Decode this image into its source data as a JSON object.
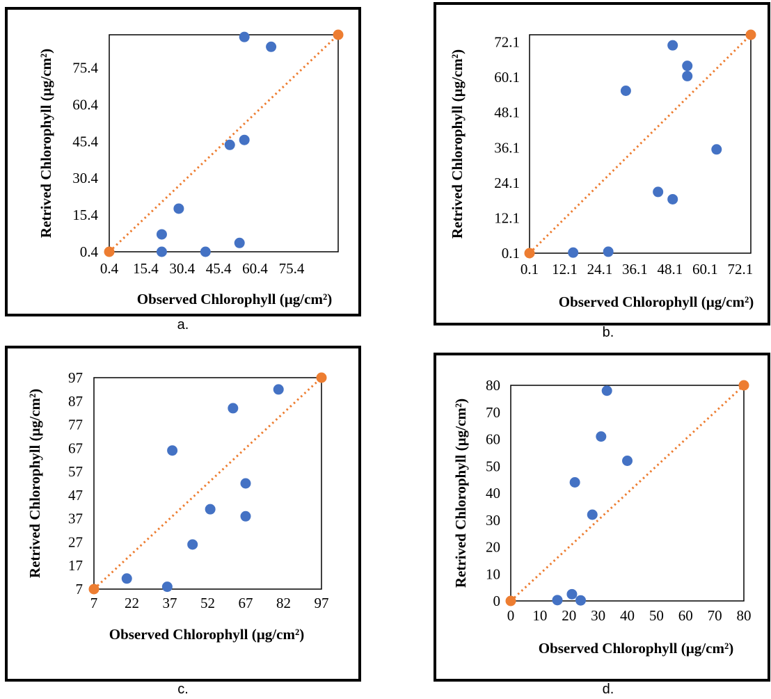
{
  "colors": {
    "observed_points": "#4472C4",
    "line_points": "#ED7D31",
    "line": "#ED7D31",
    "frame": "#000000"
  },
  "chart_data": [
    {
      "type": "scatter",
      "caption": "a.",
      "xlabel": "Observed Chlorophyll (µg/cm²)",
      "ylabel": "Retrived Chlorophyll (µg/cm²)",
      "xlim": [
        0.4,
        94.6
      ],
      "ylim": [
        0.4,
        88.9
      ],
      "xticks": [
        "0.4",
        "15.4",
        "30.4",
        "45.4",
        "60.4",
        "75.4"
      ],
      "yticks": [
        "0.4",
        "15.4",
        "30.4",
        "45.4",
        "60.4",
        "75.4"
      ],
      "grid": false,
      "series": [
        {
          "points": [
            [
              56,
              88
            ],
            [
              67,
              84
            ],
            [
              22,
              0.4
            ],
            [
              22,
              7.5
            ],
            [
              29,
              18
            ],
            [
              40,
              0.4
            ],
            [
              54,
              4
            ],
            [
              50,
              44
            ],
            [
              56,
              46
            ]
          ]
        },
        {
          "points": [
            [
              0.4,
              0.4
            ],
            [
              94.6,
              88.9
            ]
          ]
        }
      ]
    },
    {
      "type": "scatter",
      "caption": "b.",
      "xlabel": "Observed Chlorophyll (µg/cm²)",
      "ylabel": "Retrived Chlorophyll (µg/cm²)",
      "xlim": [
        0.1,
        75.7
      ],
      "ylim": [
        0.1,
        74.6
      ],
      "xticks": [
        "0.1",
        "12.1",
        "24.1",
        "36.1",
        "48.1",
        "60.1",
        "72.1"
      ],
      "yticks": [
        "0.1",
        "12.1",
        "24.1",
        "36.1",
        "48.1",
        "60.1",
        "72.1"
      ],
      "grid": false,
      "series": [
        {
          "points": [
            [
              15,
              0.3
            ],
            [
              27,
              0.6
            ],
            [
              33,
              55.5
            ],
            [
              44,
              21
            ],
            [
              49,
              18.5
            ],
            [
              49,
              71
            ],
            [
              54,
              64
            ],
            [
              54,
              60.5
            ],
            [
              64,
              35.5
            ]
          ]
        },
        {
          "points": [
            [
              0.1,
              0.1
            ],
            [
              75.7,
              74.6
            ]
          ]
        }
      ]
    },
    {
      "type": "scatter",
      "caption": "c.",
      "xlabel": "Observed Chlorophyll (µg/cm²)",
      "ylabel": "Retrived Chlorophyll (µg/cm²)",
      "xlim": [
        7,
        97
      ],
      "ylim": [
        7,
        97
      ],
      "xticks": [
        "7",
        "22",
        "37",
        "52",
        "67",
        "82",
        "97"
      ],
      "yticks": [
        "7",
        "17",
        "27",
        "37",
        "47",
        "57",
        "67",
        "77",
        "87",
        "97"
      ],
      "grid": false,
      "series": [
        {
          "points": [
            [
              20,
              11.5
            ],
            [
              36,
              8
            ],
            [
              38,
              66
            ],
            [
              46,
              26
            ],
            [
              53,
              41
            ],
            [
              62,
              84
            ],
            [
              67,
              52
            ],
            [
              67,
              38
            ],
            [
              80,
              92
            ]
          ]
        },
        {
          "points": [
            [
              7,
              7
            ],
            [
              97,
              97
            ]
          ]
        }
      ]
    },
    {
      "type": "scatter",
      "caption": "d.",
      "xlabel": "Observed Chlorophyll (µg/cm²)",
      "ylabel": "Retrived Chlorophyll (µg/cm²)",
      "xlim": [
        0,
        80
      ],
      "ylim": [
        0,
        80
      ],
      "xticks": [
        "0",
        "10",
        "20",
        "30",
        "40",
        "50",
        "60",
        "70",
        "80"
      ],
      "yticks": [
        "0",
        "10",
        "20",
        "30",
        "40",
        "50",
        "60",
        "70",
        "80"
      ],
      "grid": false,
      "series": [
        {
          "points": [
            [
              16,
              0.3
            ],
            [
              21,
              2.5
            ],
            [
              24,
              0.2
            ],
            [
              22,
              44
            ],
            [
              28,
              32
            ],
            [
              31,
              61
            ],
            [
              33,
              78
            ],
            [
              40,
              52
            ]
          ]
        },
        {
          "points": [
            [
              0,
              0
            ],
            [
              80,
              80
            ]
          ]
        }
      ]
    }
  ]
}
